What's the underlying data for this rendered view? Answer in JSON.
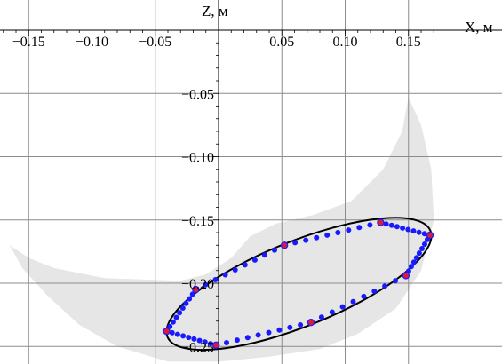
{
  "chart_data": {
    "type": "scatter",
    "title": "",
    "xlabel": "X, м",
    "ylabel": "Z, м",
    "xlim": [
      -0.17,
      0.17
    ],
    "ylim": [
      -0.25,
      0.0
    ],
    "grid": true,
    "x_ticks": [
      {
        "value": -0.15,
        "label": "−0.15"
      },
      {
        "value": -0.1,
        "label": "−0.10"
      },
      {
        "value": -0.05,
        "label": "−0.05"
      },
      {
        "value": 0.05,
        "label": "0.05"
      },
      {
        "value": 0.1,
        "label": "0.10"
      },
      {
        "value": 0.15,
        "label": "0.15"
      }
    ],
    "y_ticks": [
      {
        "value": -0.05,
        "label": "−0.05"
      },
      {
        "value": -0.1,
        "label": "−0.10"
      },
      {
        "value": -0.15,
        "label": "−0.15"
      },
      {
        "value": -0.2,
        "label": "−0.20"
      },
      {
        "value": -0.25,
        "label": "−0.25"
      }
    ],
    "colors": {
      "region": "#e6e6e6",
      "grid": "#8c8c8c",
      "ellipse": "#000000",
      "points": "#1a1aff",
      "vertices": "#d81b3c"
    },
    "region": [
      [
        -0.165,
        -0.17
      ],
      [
        -0.15,
        -0.18
      ],
      [
        -0.13,
        -0.188
      ],
      [
        -0.11,
        -0.192
      ],
      [
        -0.09,
        -0.196
      ],
      [
        -0.06,
        -0.197
      ],
      [
        -0.03,
        -0.198
      ],
      [
        -0.01,
        -0.193
      ],
      [
        0.01,
        -0.18
      ],
      [
        0.025,
        -0.163
      ],
      [
        0.045,
        -0.153
      ],
      [
        0.075,
        -0.146
      ],
      [
        0.105,
        -0.135
      ],
      [
        0.13,
        -0.11
      ],
      [
        0.145,
        -0.08
      ],
      [
        0.15,
        -0.053
      ],
      [
        0.16,
        -0.075
      ],
      [
        0.168,
        -0.11
      ],
      [
        0.17,
        -0.15
      ],
      [
        0.16,
        -0.19
      ],
      [
        0.14,
        -0.22
      ],
      [
        0.11,
        -0.24
      ],
      [
        0.08,
        -0.252
      ],
      [
        0.04,
        -0.258
      ],
      [
        0.0,
        -0.262
      ],
      [
        -0.04,
        -0.262
      ],
      [
        -0.08,
        -0.25
      ],
      [
        -0.11,
        -0.233
      ],
      [
        -0.135,
        -0.21
      ],
      [
        -0.155,
        -0.188
      ]
    ],
    "ellipse": {
      "cx": 0.0635,
      "cy": -0.2005,
      "rx": 0.112,
      "ry": 0.0335,
      "angle_deg": 22
    },
    "vertices": [
      [
        -0.018,
        -0.205
      ],
      [
        0.052,
        -0.17
      ],
      [
        0.128,
        -0.152
      ],
      [
        0.167,
        -0.162
      ],
      [
        0.148,
        -0.194
      ],
      [
        0.073,
        -0.231
      ],
      [
        -0.002,
        -0.249
      ],
      [
        -0.041,
        -0.238
      ]
    ],
    "points_per_edge": 9
  }
}
